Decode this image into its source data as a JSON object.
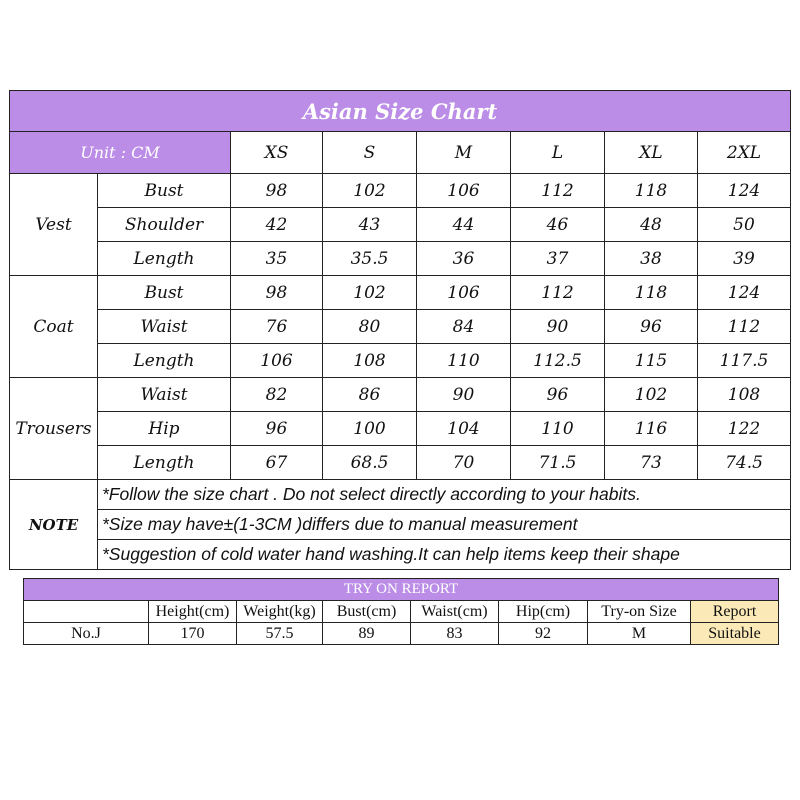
{
  "chart": {
    "title": "Asian Size Chart",
    "unit": "Unit : CM",
    "sizes": [
      "XS",
      "S",
      "M",
      "L",
      "XL",
      "2XL"
    ],
    "groups": [
      {
        "name": "Vest",
        "rows": [
          {
            "label": "Bust",
            "values": [
              "98",
              "102",
              "106",
              "112",
              "118",
              "124"
            ]
          },
          {
            "label": "Shoulder",
            "values": [
              "42",
              "43",
              "44",
              "46",
              "48",
              "50"
            ]
          },
          {
            "label": "Length",
            "values": [
              "35",
              "35.5",
              "36",
              "37",
              "38",
              "39"
            ]
          }
        ]
      },
      {
        "name": "Coat",
        "rows": [
          {
            "label": "Bust",
            "values": [
              "98",
              "102",
              "106",
              "112",
              "118",
              "124"
            ]
          },
          {
            "label": "Waist",
            "values": [
              "76",
              "80",
              "84",
              "90",
              "96",
              "112"
            ]
          },
          {
            "label": "Length",
            "values": [
              "106",
              "108",
              "110",
              "112.5",
              "115",
              "117.5"
            ]
          }
        ]
      },
      {
        "name": "Trousers",
        "rows": [
          {
            "label": "Waist",
            "values": [
              "82",
              "86",
              "90",
              "96",
              "102",
              "108"
            ]
          },
          {
            "label": "Hip",
            "values": [
              "96",
              "100",
              "104",
              "110",
              "116",
              "122"
            ]
          },
          {
            "label": "Length",
            "values": [
              "67",
              "68.5",
              "70",
              "71.5",
              "73",
              "74.5"
            ]
          }
        ]
      }
    ],
    "note_label": "NOTE",
    "notes": [
      "*Follow the size chart . Do not select directly according to your habits.",
      "*Size may have±(1-3CM )differs due to manual measurement",
      "*Suggestion of cold water hand washing.It can help items keep their shape"
    ]
  },
  "try_on": {
    "title": "TRY ON REPORT",
    "headers": [
      "",
      "Height(cm)",
      "Weight(kg)",
      "Bust(cm)",
      "Waist(cm)",
      "Hip(cm)",
      "Try-on Size",
      "Report"
    ],
    "row": [
      "No.J",
      "170",
      "57.5",
      "89",
      "83",
      "92",
      "M",
      "Suitable"
    ]
  },
  "colors": {
    "header_purple": "#bb8de6",
    "report_yellow": "#fbe9b8"
  }
}
